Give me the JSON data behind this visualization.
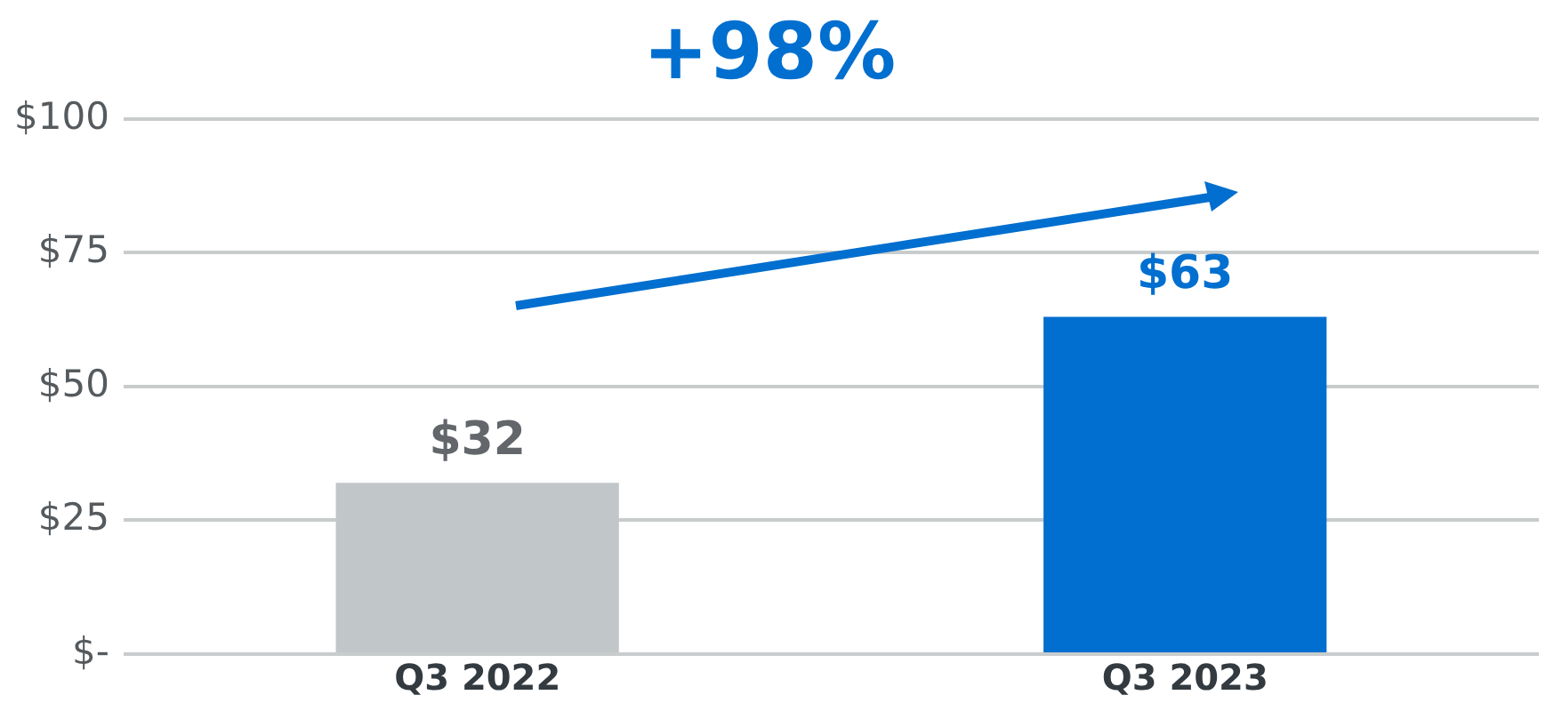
{
  "chart_data": {
    "type": "bar",
    "title": "+98%",
    "categories": [
      "Q3 2022",
      "Q3 2023"
    ],
    "values": [
      32,
      63
    ],
    "colors": [
      "#c1c6c8",
      "#006fcf"
    ],
    "value_labels": [
      "$32",
      "$63"
    ],
    "ylim": [
      0,
      100
    ],
    "yticks": [
      {
        "value": 0,
        "label": "$-"
      },
      {
        "value": 25,
        "label": "$25"
      },
      {
        "value": 50,
        "label": "$50"
      },
      {
        "value": 75,
        "label": "$75"
      },
      {
        "value": 100,
        "label": "$100"
      }
    ],
    "grid": "y"
  }
}
